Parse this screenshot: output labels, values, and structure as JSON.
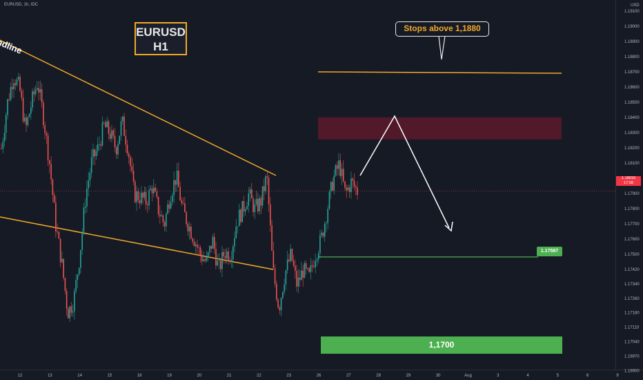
{
  "symbol_line": "EURUSD, 1h, IDC",
  "currency": "USD",
  "pair_label": {
    "line1": "EURUSD",
    "line2": "H1"
  },
  "trendline_text": "endline",
  "callout_text": "Stops above 1,1880",
  "target_text": "1,1700",
  "support_tag": "1.17587",
  "last_price_tag": {
    "price": "1.18019",
    "countdown": "17:08"
  },
  "colors": {
    "background": "#161a25",
    "up_candle": "#26a69a",
    "down_candle": "#ef5350",
    "trendline": "#f0a92a",
    "resistance_zone": "#5c1a2a",
    "support_line": "#4caf50",
    "target_zone": "#4caf50",
    "arrow": "#ffffff"
  },
  "chart_data": {
    "type": "candlestick",
    "y_axis": {
      "ticks": [
        "1.19100",
        "1.19000",
        "1.18900",
        "1.18800",
        "1.18700",
        "1.18600",
        "1.18500",
        "1.18400",
        "1.18300",
        "1.18200",
        "1.18100",
        "1.18000",
        "1.17900",
        "1.17800",
        "1.17700",
        "1.17600",
        "1.17500",
        "1.17420",
        "1.17340",
        "1.17260",
        "1.17180",
        "1.17110",
        "1.17040",
        "1.16970",
        "1.16900"
      ]
    },
    "x_axis": {
      "ticks": [
        "12",
        "13",
        "14",
        "15",
        "16",
        "19",
        "20",
        "21",
        "22",
        "23",
        "26",
        "27",
        "28",
        "29",
        "30",
        "Aug",
        "3",
        "4",
        "5",
        "6",
        "9"
      ]
    },
    "price_path": [
      1.183,
      1.186,
      1.1878,
      1.187,
      1.1842,
      1.186,
      1.1874,
      1.185,
      1.182,
      1.178,
      1.1755,
      1.1722,
      1.173,
      1.176,
      1.18,
      1.1822,
      1.183,
      1.1845,
      1.184,
      1.183,
      1.1848,
      1.183,
      1.18,
      1.1798,
      1.1795,
      1.1805,
      1.179,
      1.178,
      1.18,
      1.1812,
      1.179,
      1.178,
      1.177,
      1.176,
      1.1755,
      1.177,
      1.175,
      1.1762,
      1.176,
      1.1782,
      1.179,
      1.18,
      1.179,
      1.1795,
      1.1812,
      1.175,
      1.1725,
      1.1748,
      1.176,
      1.174,
      1.175,
      1.1745,
      1.176,
      1.177,
      1.179,
      1.181,
      1.182,
      1.18,
      1.1808,
      1.1802
    ],
    "annotations": {
      "stop_level": 1.188,
      "resistance_zone": [
        1.1835,
        1.185
      ],
      "support_level": 1.17587,
      "target_level": 1.17,
      "last_price": 1.18019
    }
  }
}
